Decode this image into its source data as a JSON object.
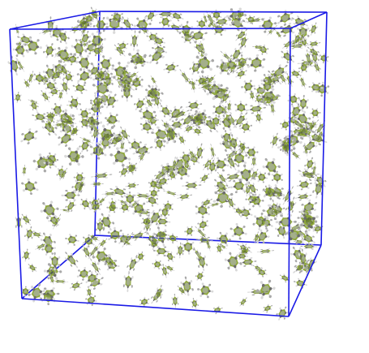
{
  "scene": {
    "subject": "molecular-dynamics-simulation-box",
    "molecule": "benzene",
    "box_edge_color": "#1a1ae6",
    "ring_color": "#5a6e2a",
    "ring_highlight_color": "#8fa83a",
    "carbon_color": "#6b6b6b",
    "hydrogen_color": "#d9d9d9",
    "background_color": "#ffffff"
  }
}
